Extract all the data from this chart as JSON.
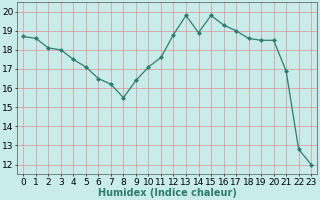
{
  "x": [
    0,
    1,
    2,
    3,
    4,
    5,
    6,
    7,
    8,
    9,
    10,
    11,
    12,
    13,
    14,
    15,
    16,
    17,
    18,
    19,
    20,
    21,
    22,
    23
  ],
  "y": [
    18.7,
    18.6,
    18.1,
    18.0,
    17.5,
    17.1,
    16.5,
    16.2,
    15.5,
    16.4,
    17.1,
    17.6,
    18.8,
    19.8,
    18.9,
    19.8,
    19.3,
    19.0,
    18.6,
    18.5,
    18.5,
    16.9,
    12.8,
    12.0
  ],
  "line_color": "#2e7d6e",
  "marker": "D",
  "marker_size": 2.0,
  "bg_color": "#c8ecea",
  "grid_color": "#e08080",
  "xlabel": "Humidex (Indice chaleur)",
  "xlim": [
    -0.5,
    23.5
  ],
  "ylim": [
    11.5,
    20.5
  ],
  "yticks": [
    12,
    13,
    14,
    15,
    16,
    17,
    18,
    19,
    20
  ],
  "xticks": [
    0,
    1,
    2,
    3,
    4,
    5,
    6,
    7,
    8,
    9,
    10,
    11,
    12,
    13,
    14,
    15,
    16,
    17,
    18,
    19,
    20,
    21,
    22,
    23
  ],
  "xlabel_fontsize": 7,
  "tick_fontsize": 6.5
}
